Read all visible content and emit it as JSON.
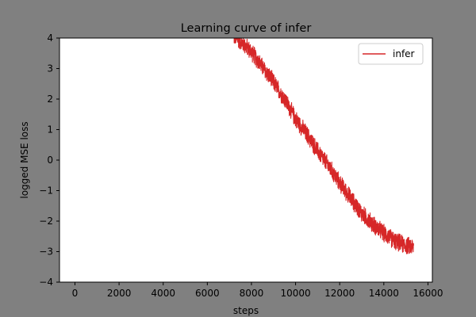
{
  "chart_data": {
    "type": "line",
    "title": "Learning curve of infer",
    "xlabel": "steps",
    "ylabel": "logged MSE loss",
    "xlim": [
      -700,
      16200
    ],
    "ylim": [
      -4,
      4
    ],
    "x_ticks": [
      0,
      2000,
      4000,
      6000,
      8000,
      10000,
      12000,
      14000,
      16000
    ],
    "y_ticks": [
      -4,
      -3,
      -2,
      -1,
      0,
      1,
      2,
      3,
      4
    ],
    "grid": false,
    "legend_position": "top-right",
    "background_color": "#808080",
    "plot_background": "#ffffff",
    "series": [
      {
        "name": "infer",
        "color": "#d62728",
        "x": [
          7200,
          7500,
          8000,
          8500,
          9000,
          9500,
          10000,
          10500,
          11000,
          11500,
          12000,
          12500,
          13000,
          13500,
          14000,
          14500,
          15000,
          15350
        ],
        "y": [
          4.05,
          3.9,
          3.55,
          3.05,
          2.55,
          2.0,
          1.35,
          0.85,
          0.3,
          -0.2,
          -0.75,
          -1.25,
          -1.75,
          -2.1,
          -2.4,
          -2.65,
          -2.8,
          -2.85
        ],
        "noise_band": 0.25
      }
    ]
  }
}
